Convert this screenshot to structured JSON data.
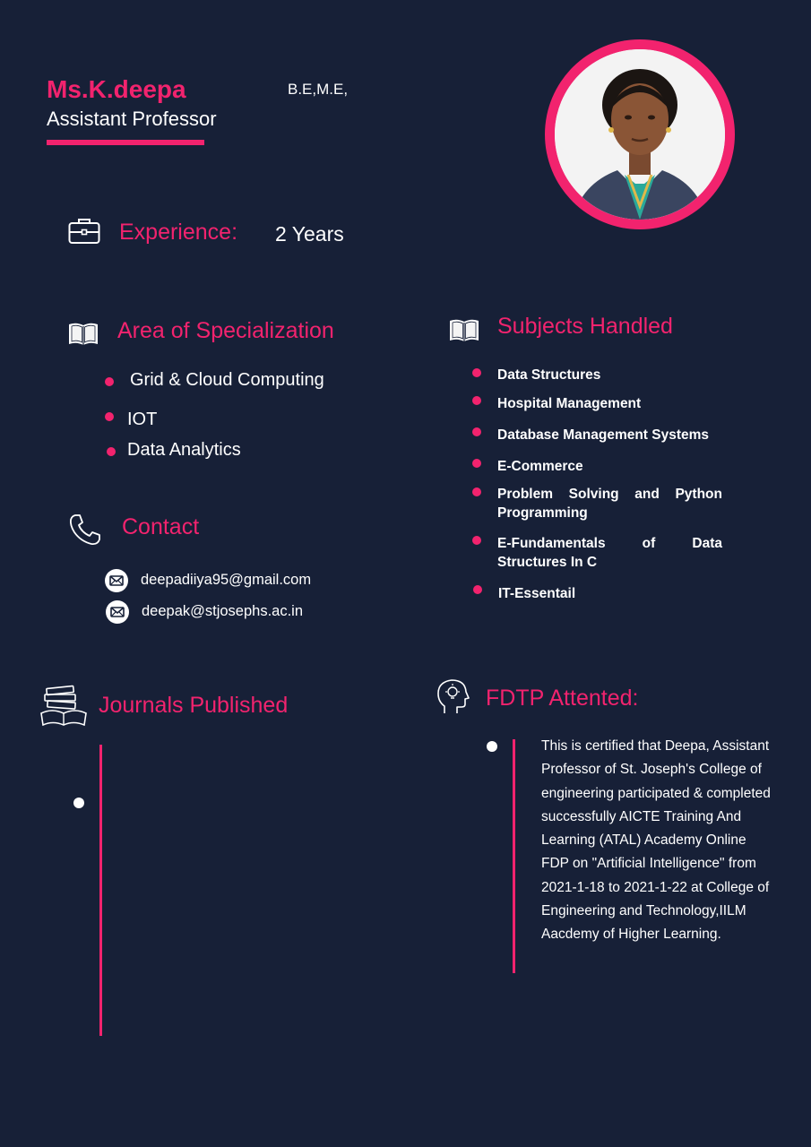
{
  "header": {
    "name": "Ms.K.deepa",
    "degree": "B.E,M.E,",
    "role": "Assistant Professor"
  },
  "experience": {
    "label": "Experience:",
    "value": "2 Years"
  },
  "specialization": {
    "title": "Area of Specialization",
    "items": [
      "Grid & Cloud Computing",
      "IOT",
      "Data Analytics"
    ]
  },
  "subjects": {
    "title": "Subjects Handled",
    "items": [
      "Data Structures",
      "Hospital Management",
      "Database Management Systems",
      "E-Commerce",
      "Problem Solving and Python",
      "Programming",
      "E-Fundamentals of Data",
      "Structures In C",
      "IT-Essentail"
    ]
  },
  "contact": {
    "title": "Contact",
    "emails": [
      "deepadiiya95@gmail.com",
      "deepak@stjosephs.ac.in"
    ]
  },
  "journals": {
    "title": "Journals Published"
  },
  "fdtp": {
    "title": "FDTP Attented:",
    "text": "This is certified that Deepa, Assistant Professor of St. Joseph's College of engineering participated & completed successfully AICTE Training And Learning (ATAL) Academy Online FDP on \"Artificial Intelligence\" from 2021-1-18 to 2021-1-22 at College of Engineering and Technology,IILM Aacdemy of Higher Learning."
  },
  "colors": {
    "background": "#172037",
    "accent": "#f2236e",
    "text": "#ffffff"
  },
  "icons": [
    "briefcase-icon",
    "open-book-icon",
    "phone-icon",
    "mail-icon",
    "books-stack-icon",
    "idea-head-icon"
  ]
}
